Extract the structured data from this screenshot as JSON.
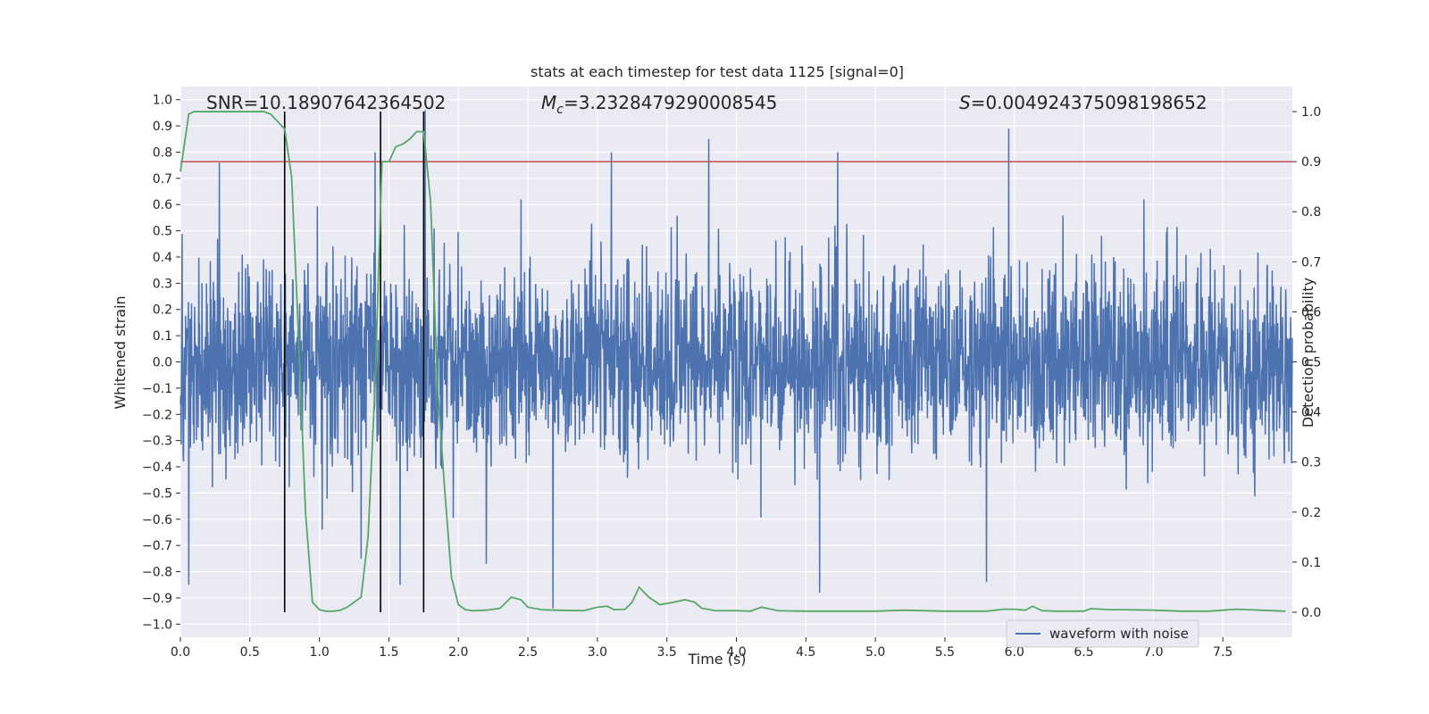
{
  "chart_data": {
    "type": "line",
    "title": "stats at each timestep for test data 1125 [signal=0]",
    "xlabel": "Time (s)",
    "ylabel": "Whitened strain",
    "y2label": "Detection probability",
    "xlim": [
      0.0,
      8.0
    ],
    "ylim": [
      -1.05,
      1.05
    ],
    "y2lim": [
      -0.05,
      1.05
    ],
    "x_ticks": [
      0.0,
      0.5,
      1.0,
      1.5,
      2.0,
      2.5,
      3.0,
      3.5,
      4.0,
      4.5,
      5.0,
      5.5,
      6.0,
      6.5,
      7.0,
      7.5
    ],
    "x_tick_labels": [
      "0.0",
      "0.5",
      "1.0",
      "1.5",
      "2.0",
      "2.5",
      "3.0",
      "3.5",
      "4.0",
      "4.5",
      "5.0",
      "5.5",
      "6.0",
      "6.5",
      "7.0",
      "7.5"
    ],
    "y_ticks": [
      -1.0,
      -0.9,
      -0.8,
      -0.7,
      -0.6,
      -0.5,
      -0.4,
      -0.3,
      -0.2,
      -0.1,
      0.0,
      0.1,
      0.2,
      0.3,
      0.4,
      0.5,
      0.6,
      0.7,
      0.8,
      0.9,
      1.0
    ],
    "y_tick_labels": [
      "−1.0",
      "−0.9",
      "−0.8",
      "−0.7",
      "−0.6",
      "−0.5",
      "−0.4",
      "−0.3",
      "−0.2",
      "−0.1",
      "0.0",
      "0.1",
      "0.2",
      "0.3",
      "0.4",
      "0.5",
      "0.6",
      "0.7",
      "0.8",
      "0.9",
      "1.0"
    ],
    "y2_ticks": [
      0.0,
      0.1,
      0.2,
      0.3,
      0.4,
      0.5,
      0.6,
      0.7,
      0.8,
      0.9,
      1.0
    ],
    "y2_tick_labels": [
      "0.0",
      "0.1",
      "0.2",
      "0.3",
      "0.4",
      "0.5",
      "0.6",
      "0.7",
      "0.8",
      "0.9",
      "1.0"
    ],
    "grid": true,
    "legend_position": "bottom-right",
    "annotations": {
      "snr": "SNR=10.18907642364502",
      "mc_symbol": "M",
      "mc_subscript": "c",
      "mc_value": "=3.2328479290008545",
      "s_symbol": "S",
      "s_value": "=0.004924375098198652"
    },
    "threshold": {
      "axis": "right",
      "value": 0.9,
      "color": "#c44e52"
    },
    "vertical_markers": {
      "x": [
        0.75,
        1.44,
        1.75
      ],
      "y2_range": [
        0.0,
        1.0
      ],
      "color": "#000000"
    },
    "series": [
      {
        "name": "waveform with noise",
        "axis": "left",
        "color": "#4c72b0",
        "x_range": [
          0.0,
          8.0
        ],
        "samples": 16384,
        "typical_abs_peak": 0.48,
        "notable_peaks": [
          {
            "x": 0.06,
            "y": -0.85
          },
          {
            "x": 0.28,
            "y": 0.76
          },
          {
            "x": 1.02,
            "y": -0.64
          },
          {
            "x": 1.3,
            "y": 1.0
          },
          {
            "x": 1.3,
            "y": -0.75
          },
          {
            "x": 1.4,
            "y": 0.8
          },
          {
            "x": 1.58,
            "y": -0.85
          },
          {
            "x": 1.76,
            "y": 0.96
          },
          {
            "x": 2.2,
            "y": -0.77
          },
          {
            "x": 2.68,
            "y": -0.94
          },
          {
            "x": 3.1,
            "y": 0.8
          },
          {
            "x": 3.8,
            "y": 0.85
          },
          {
            "x": 4.6,
            "y": -0.88
          },
          {
            "x": 4.73,
            "y": 0.8
          },
          {
            "x": 5.8,
            "y": -0.84
          },
          {
            "x": 5.96,
            "y": 0.89
          }
        ]
      },
      {
        "name": "",
        "axis": "right",
        "color": "#55a868",
        "x": [
          0.0,
          0.06,
          0.1,
          0.2,
          0.3,
          0.4,
          0.5,
          0.6,
          0.65,
          0.7,
          0.75,
          0.8,
          0.85,
          0.9,
          0.95,
          1.0,
          1.05,
          1.1,
          1.15,
          1.2,
          1.25,
          1.3,
          1.35,
          1.4,
          1.45,
          1.5,
          1.55,
          1.6,
          1.65,
          1.7,
          1.75,
          1.8,
          1.85,
          1.9,
          1.95,
          2.0,
          2.05,
          2.1,
          2.2,
          2.3,
          2.38,
          2.45,
          2.5,
          2.6,
          2.7,
          2.9,
          3.0,
          3.07,
          3.12,
          3.2,
          3.25,
          3.3,
          3.37,
          3.45,
          3.55,
          3.63,
          3.7,
          3.75,
          3.85,
          4.0,
          4.1,
          4.18,
          4.3,
          4.5,
          5.0,
          5.2,
          5.5,
          5.8,
          5.92,
          6.0,
          6.08,
          6.13,
          6.2,
          6.3,
          6.5,
          6.55,
          6.7,
          6.8,
          7.0,
          7.2,
          7.4,
          7.5,
          7.6,
          7.95
        ],
        "values": [
          0.88,
          0.995,
          1.0,
          1.0,
          1.0,
          1.0,
          1.0,
          1.0,
          0.995,
          0.98,
          0.965,
          0.87,
          0.55,
          0.2,
          0.02,
          0.005,
          0.002,
          0.002,
          0.004,
          0.01,
          0.02,
          0.03,
          0.15,
          0.45,
          0.9,
          0.9,
          0.93,
          0.935,
          0.945,
          0.96,
          0.96,
          0.82,
          0.45,
          0.25,
          0.07,
          0.015,
          0.005,
          0.003,
          0.004,
          0.008,
          0.03,
          0.025,
          0.01,
          0.005,
          0.004,
          0.003,
          0.01,
          0.012,
          0.005,
          0.006,
          0.02,
          0.05,
          0.03,
          0.015,
          0.02,
          0.025,
          0.02,
          0.008,
          0.003,
          0.003,
          0.002,
          0.01,
          0.003,
          0.002,
          0.002,
          0.004,
          0.002,
          0.002,
          0.006,
          0.006,
          0.004,
          0.012,
          0.003,
          0.002,
          0.002,
          0.007,
          0.005,
          0.005,
          0.004,
          0.002,
          0.002,
          0.004,
          0.006,
          0.002
        ]
      }
    ]
  }
}
